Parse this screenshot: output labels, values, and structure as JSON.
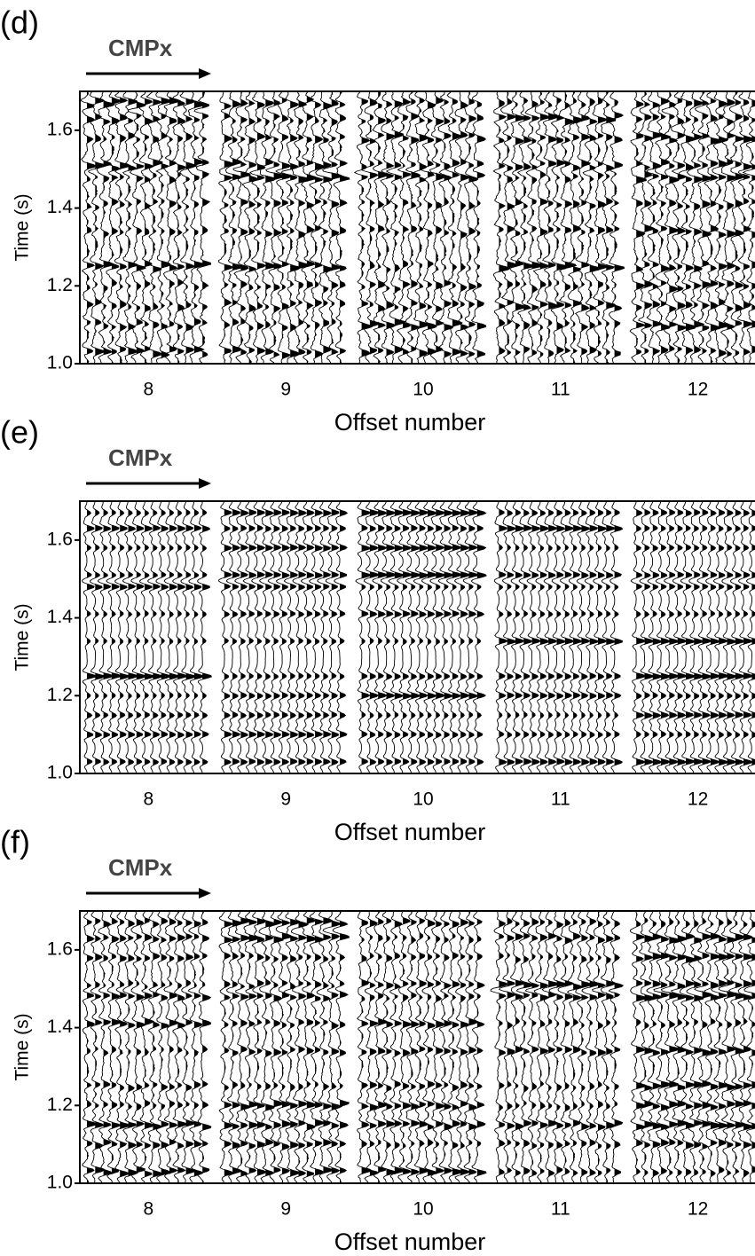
{
  "chart_data": [
    {
      "type": "seismic",
      "panel_label": "(d)",
      "annotation": "CMPx",
      "categories": [
        "8",
        "9",
        "10",
        "11",
        "12"
      ],
      "xlabel": "Offset number",
      "ylabel": "Time (s)",
      "ylim": [
        1.0,
        1.7
      ],
      "yticks": [
        {
          "value": 1.0,
          "label": "1.0"
        },
        1.2,
        1.4,
        1.6
      ]
    },
    {
      "type": "seismic",
      "panel_label": "(e)",
      "annotation": "CMPx",
      "categories": [
        "8",
        "9",
        "10",
        "11",
        "12"
      ],
      "xlabel": "Offset number",
      "ylabel": "Time (s)",
      "ylim": [
        1.0,
        1.7
      ],
      "yticks": [
        {
          "value": 1.0,
          "label": "1.0"
        },
        1.2,
        1.4,
        1.6
      ]
    },
    {
      "type": "seismic",
      "panel_label": "(f)",
      "annotation": "CMPx",
      "categories": [
        "8",
        "9",
        "10",
        "11",
        "12"
      ],
      "xlabel": "Offset number",
      "ylabel": "Time (s)",
      "ylim": [
        1.0,
        1.7
      ],
      "yticks": [
        {
          "value": 1.0,
          "label": "1.0"
        },
        1.2,
        1.4,
        1.6
      ]
    }
  ]
}
